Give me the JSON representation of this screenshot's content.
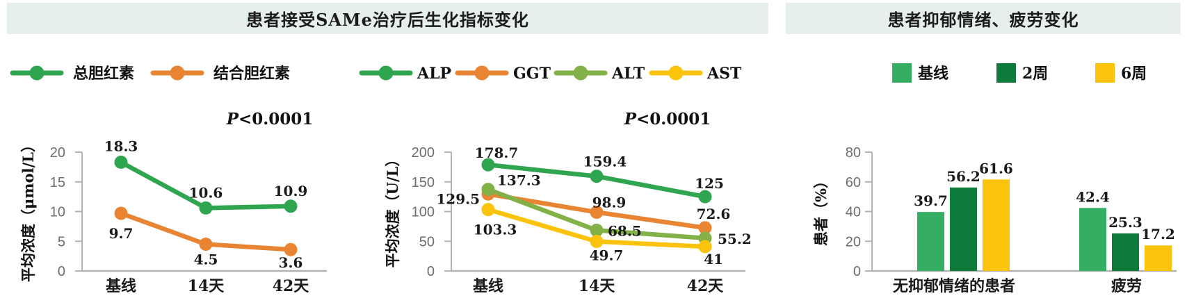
{
  "header": {
    "left_title": "患者接受SAMe治疗后生化指标变化",
    "right_title": "患者抑郁情绪、疲劳变化"
  },
  "colors": {
    "band_bg": "#e5f0ea",
    "axis": "#b3b3b3",
    "tick_text": "#6e6e6e",
    "text": "#1a1a1a",
    "green": "#2fa54f",
    "orange": "#e98432",
    "olive": "#82b147",
    "yellow": "#fcc30d",
    "bar_green": "#33ae63",
    "bar_dark_green": "#0e7b3b"
  },
  "chart_data": [
    {
      "id": "bilirubin",
      "type": "line",
      "p_value": "P<0.0001",
      "ylabel": "平均浓度（μmol/L）",
      "categories": [
        "基线",
        "14天",
        "42天"
      ],
      "ylim": [
        0,
        20
      ],
      "yticks": [
        0,
        5,
        10,
        15,
        20
      ],
      "grid": false,
      "legend_position": "top",
      "series": [
        {
          "name": "总胆红素",
          "color_key": "green",
          "values": [
            18.3,
            10.6,
            10.9
          ]
        },
        {
          "name": "结合胆红素",
          "color_key": "orange",
          "values": [
            9.7,
            4.5,
            3.6
          ]
        }
      ]
    },
    {
      "id": "liver-enzymes",
      "type": "line",
      "p_value": "P<0.0001",
      "ylabel": "平均浓度（U/L）",
      "categories": [
        "基线",
        "14天",
        "42天"
      ],
      "ylim": [
        0,
        200
      ],
      "yticks": [
        0,
        50,
        100,
        150,
        200
      ],
      "grid": false,
      "legend_position": "top",
      "series": [
        {
          "name": "ALP",
          "color_key": "green",
          "values": [
            178.7,
            159.4,
            125
          ]
        },
        {
          "name": "GGT",
          "color_key": "orange",
          "values": [
            129.5,
            98.9,
            72.6
          ]
        },
        {
          "name": "ALT",
          "color_key": "olive",
          "values": [
            137.3,
            68.5,
            55.2
          ]
        },
        {
          "name": "AST",
          "color_key": "yellow",
          "values": [
            103.3,
            49.7,
            41
          ]
        }
      ]
    },
    {
      "id": "mood-fatigue",
      "type": "bar",
      "ylabel": "患者（%）",
      "categories": [
        "无抑郁情绪的患者",
        "疲劳"
      ],
      "ylim": [
        0,
        80
      ],
      "yticks": [
        0,
        20,
        40,
        60,
        80
      ],
      "grid": false,
      "legend_position": "top",
      "series": [
        {
          "name": "基线",
          "color_key": "bar_green",
          "values": [
            39.7,
            42.4
          ]
        },
        {
          "name": "2周",
          "color_key": "bar_dark_green",
          "values": [
            56.2,
            25.3
          ]
        },
        {
          "name": "6周",
          "color_key": "yellow",
          "values": [
            61.6,
            17.2
          ]
        }
      ]
    }
  ]
}
